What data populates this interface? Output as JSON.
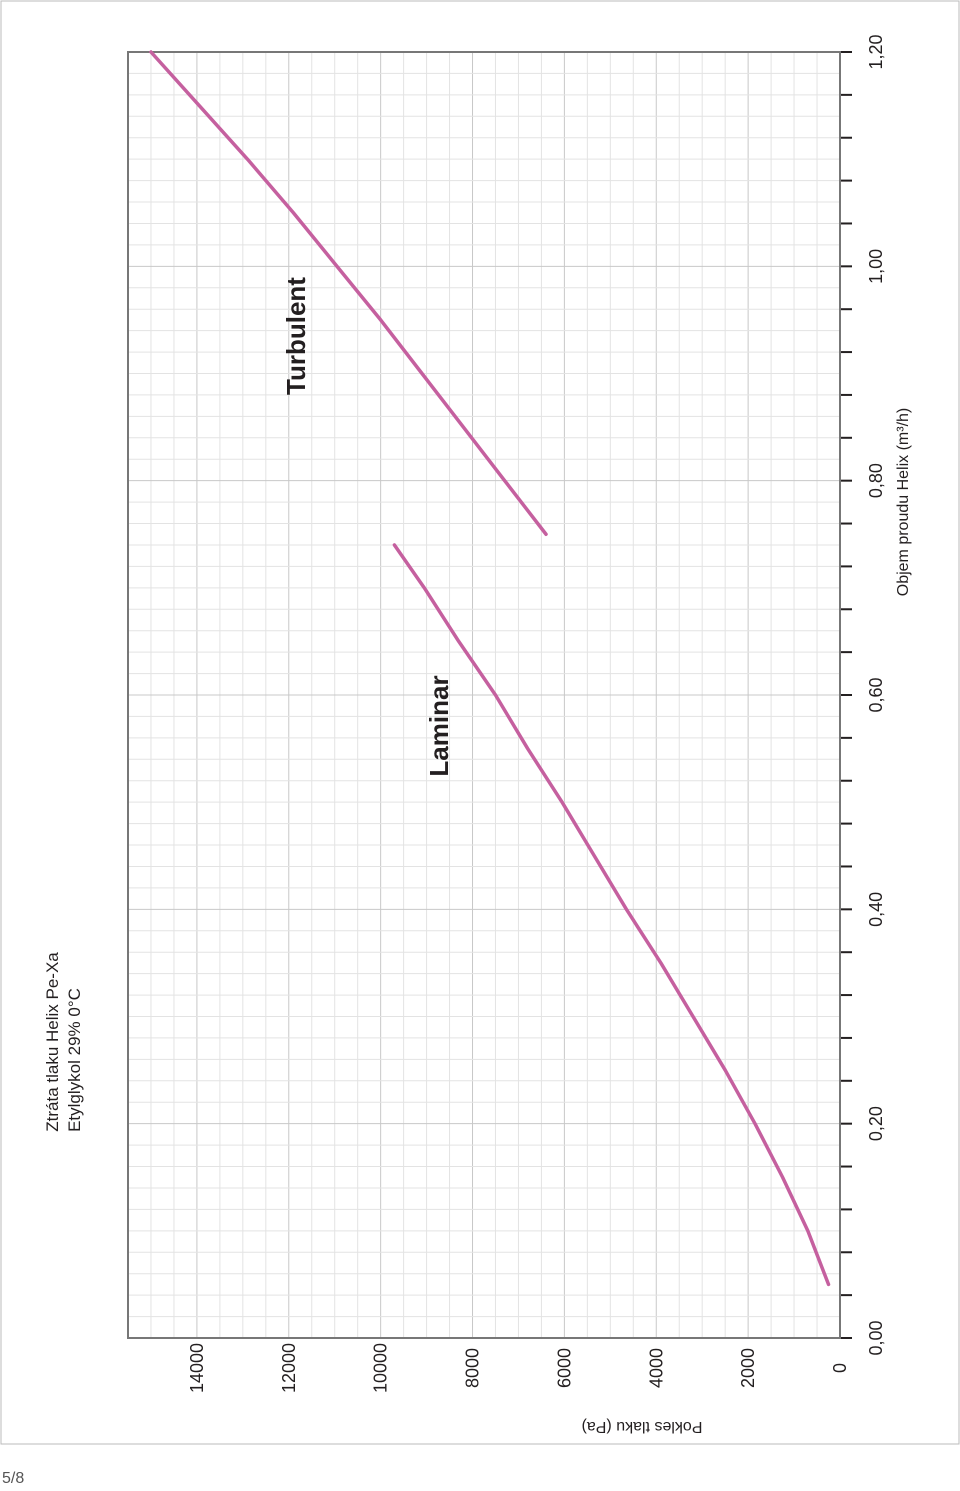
{
  "page_number": "5/8",
  "colors": {
    "curve": "#c5609f",
    "frame": "#777777",
    "grid_major": "#c8c8c8",
    "grid_minor": "#e3e3e3",
    "text": "#231f20"
  },
  "chart_data": {
    "type": "line",
    "orientation": "rotated 90° counter-clockwise",
    "title": "Ztráta tlaku Helix Pe-Xa",
    "subtitle": "Etylglykol 29% 0°C",
    "xlabel": "Objem proudu Helix (m³/h)",
    "ylabel": "Pokles tlaku (Pa)",
    "xlim": [
      0,
      1.2
    ],
    "ylim": [
      0,
      15500
    ],
    "x_ticks": [
      {
        "value": 0,
        "label": "0,00"
      },
      {
        "value": 0.2,
        "label": "0,20"
      },
      {
        "value": 0.4,
        "label": "0,40"
      },
      {
        "value": 0.6,
        "label": "0,60"
      },
      {
        "value": 0.8,
        "label": "0,80"
      },
      {
        "value": 1.0,
        "label": "1,00"
      },
      {
        "value": 1.2,
        "label": "1,20"
      }
    ],
    "y_ticks": [
      {
        "value": 0,
        "label": "0"
      },
      {
        "value": 2000,
        "label": "2000"
      },
      {
        "value": 4000,
        "label": "4000"
      },
      {
        "value": 6000,
        "label": "6000"
      },
      {
        "value": 8000,
        "label": "8000"
      },
      {
        "value": 10000,
        "label": "10000"
      },
      {
        "value": 12000,
        "label": "12000"
      },
      {
        "value": 14000,
        "label": "14000"
      }
    ],
    "grid": true,
    "legend": "none",
    "series": [
      {
        "name": "Laminar",
        "x": [
          0.05,
          0.1,
          0.15,
          0.2,
          0.25,
          0.3,
          0.35,
          0.4,
          0.45,
          0.5,
          0.55,
          0.6,
          0.65,
          0.7,
          0.74
        ],
        "y": [
          250,
          700,
          1250,
          1850,
          2500,
          3200,
          3900,
          4650,
          5350,
          6050,
          6800,
          7500,
          8300,
          9050,
          9700
        ]
      },
      {
        "name": "Turbulent",
        "x": [
          0.75,
          0.8,
          0.85,
          0.9,
          0.95,
          1.0,
          1.05,
          1.1,
          1.15,
          1.2
        ],
        "y": [
          6400,
          7300,
          8200,
          9100,
          10000,
          10950,
          11900,
          12900,
          13950,
          15000
        ]
      }
    ]
  }
}
